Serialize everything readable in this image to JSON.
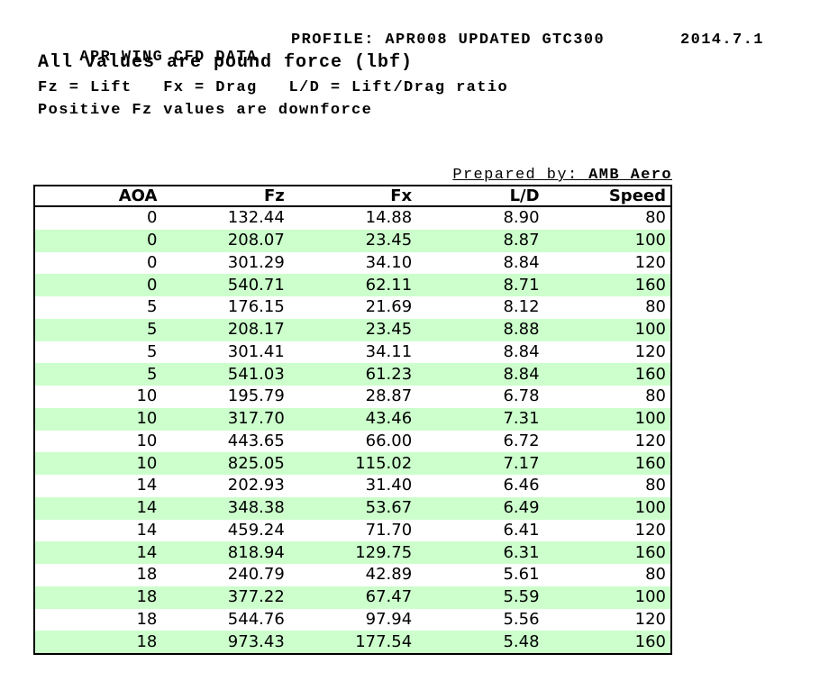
{
  "header": {
    "title": "APR WING CFD DATA",
    "profile": "PROFILE: APR008 UPDATED GTC300",
    "date": "2014.7.1",
    "subtitle": "All values are pound force (lbf)",
    "legend": "Fz = Lift   Fx = Drag   L/D = Lift/Drag ratio",
    "note": "Positive Fz values are downforce"
  },
  "prepared_by": {
    "label": "Prepared by: ",
    "value": "AMB Aero"
  },
  "table": {
    "columns": [
      "AOA",
      "Fz",
      "Fx",
      "L/D",
      "Speed"
    ],
    "column_keys": [
      "aoa",
      "fz",
      "fx",
      "ld",
      "speed"
    ],
    "rows": [
      [
        "0",
        "132.44",
        "14.88",
        "8.90",
        "80"
      ],
      [
        "0",
        "208.07",
        "23.45",
        "8.87",
        "100"
      ],
      [
        "0",
        "301.29",
        "34.10",
        "8.84",
        "120"
      ],
      [
        "0",
        "540.71",
        "62.11",
        "8.71",
        "160"
      ],
      [
        "5",
        "176.15",
        "21.69",
        "8.12",
        "80"
      ],
      [
        "5",
        "208.17",
        "23.45",
        "8.88",
        "100"
      ],
      [
        "5",
        "301.41",
        "34.11",
        "8.84",
        "120"
      ],
      [
        "5",
        "541.03",
        "61.23",
        "8.84",
        "160"
      ],
      [
        "10",
        "195.79",
        "28.87",
        "6.78",
        "80"
      ],
      [
        "10",
        "317.70",
        "43.46",
        "7.31",
        "100"
      ],
      [
        "10",
        "443.65",
        "66.00",
        "6.72",
        "120"
      ],
      [
        "10",
        "825.05",
        "115.02",
        "7.17",
        "160"
      ],
      [
        "14",
        "202.93",
        "31.40",
        "6.46",
        "80"
      ],
      [
        "14",
        "348.38",
        "53.67",
        "6.49",
        "100"
      ],
      [
        "14",
        "459.24",
        "71.70",
        "6.41",
        "120"
      ],
      [
        "14",
        "818.94",
        "129.75",
        "6.31",
        "160"
      ],
      [
        "18",
        "240.79",
        "42.89",
        "5.61",
        "80"
      ],
      [
        "18",
        "377.22",
        "67.47",
        "5.59",
        "100"
      ],
      [
        "18",
        "544.76",
        "97.94",
        "5.56",
        "120"
      ],
      [
        "18",
        "973.43",
        "177.54",
        "5.48",
        "160"
      ]
    ]
  },
  "colors": {
    "row_alt": "#ccffcc",
    "border": "#000000",
    "text": "#000000",
    "background": "#ffffff"
  }
}
